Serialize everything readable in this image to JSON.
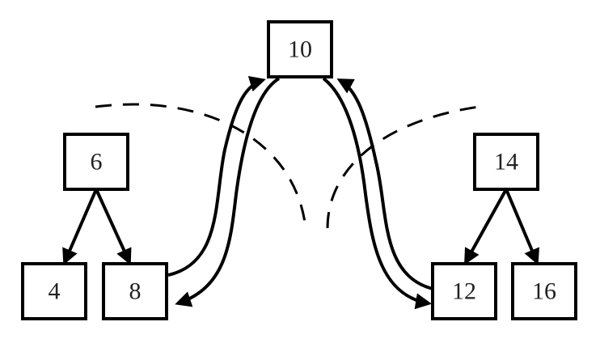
{
  "diagram": {
    "nodes": [
      {
        "id": "n10",
        "label": "10"
      },
      {
        "id": "n6",
        "label": "6"
      },
      {
        "id": "n14",
        "label": "14"
      },
      {
        "id": "n4",
        "label": "4"
      },
      {
        "id": "n8",
        "label": "8"
      },
      {
        "id": "n12",
        "label": "12"
      },
      {
        "id": "n16",
        "label": "16"
      }
    ],
    "edges": [
      {
        "from": "n6",
        "to": "n4"
      },
      {
        "from": "n6",
        "to": "n8"
      },
      {
        "from": "n14",
        "to": "n12"
      },
      {
        "from": "n14",
        "to": "n16"
      }
    ]
  }
}
